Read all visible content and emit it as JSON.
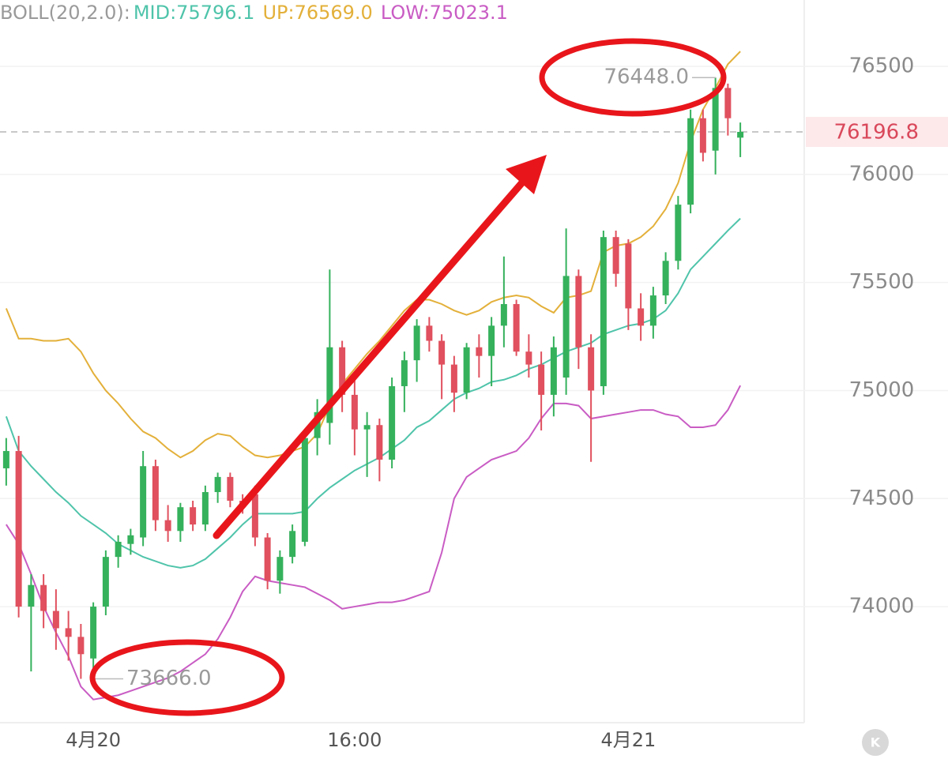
{
  "chart_data": {
    "type": "candlestick",
    "indicator": "BOLL(20,2.0):",
    "categories": [
      null,
      null,
      null,
      null,
      null,
      null,
      null,
      "4月20",
      null,
      null,
      null,
      null,
      null,
      null,
      null,
      null,
      null,
      null,
      null,
      null,
      null,
      null,
      null,
      null,
      null,
      null,
      null,
      null,
      "16:00",
      null,
      null,
      null,
      null,
      null,
      null,
      null,
      null,
      null,
      null,
      null,
      null,
      null,
      null,
      null,
      null,
      null,
      null,
      null,
      null,
      null,
      "4月21",
      null,
      null,
      null,
      null,
      null,
      null,
      null,
      null,
      null
    ],
    "ohlc": [
      [
        74640,
        74780,
        74560,
        74720
      ],
      [
        74720,
        74790,
        73950,
        74000
      ],
      [
        74000,
        74150,
        73700,
        74100
      ],
      [
        74100,
        74150,
        73900,
        73980
      ],
      [
        73980,
        74080,
        73800,
        73900
      ],
      [
        73900,
        73980,
        73750,
        73860
      ],
      [
        73860,
        73920,
        73666,
        73780
      ],
      [
        73760,
        74020,
        73700,
        74000
      ],
      [
        74000,
        74260,
        73960,
        74230
      ],
      [
        74230,
        74330,
        74180,
        74300
      ],
      [
        74290,
        74360,
        74240,
        74330
      ],
      [
        74320,
        74720,
        74280,
        74650
      ],
      [
        74650,
        74680,
        74350,
        74400
      ],
      [
        74400,
        74470,
        74300,
        74350
      ],
      [
        74350,
        74480,
        74300,
        74460
      ],
      [
        74460,
        74490,
        74350,
        74380
      ],
      [
        74380,
        74560,
        74350,
        74530
      ],
      [
        74530,
        74620,
        74480,
        74600
      ],
      [
        74600,
        74620,
        74460,
        74490
      ],
      [
        74490,
        74520,
        74430,
        74460
      ],
      [
        74520,
        74560,
        74280,
        74320
      ],
      [
        74320,
        74340,
        74080,
        74120
      ],
      [
        74120,
        74260,
        74060,
        74230
      ],
      [
        74230,
        74380,
        74200,
        74350
      ],
      [
        74300,
        74800,
        74280,
        74780
      ],
      [
        74780,
        74960,
        74700,
        74900
      ],
      [
        74850,
        75560,
        74750,
        75200
      ],
      [
        75200,
        75230,
        74900,
        74980
      ],
      [
        74980,
        75050,
        74700,
        74820
      ],
      [
        74820,
        74900,
        74600,
        74840
      ],
      [
        74840,
        74870,
        74580,
        74680
      ],
      [
        74680,
        75060,
        74640,
        75020
      ],
      [
        75020,
        75180,
        74900,
        75140
      ],
      [
        75140,
        75330,
        75040,
        75300
      ],
      [
        75300,
        75340,
        75180,
        75230
      ],
      [
        75230,
        75260,
        74960,
        75120
      ],
      [
        75120,
        75160,
        74900,
        74990
      ],
      [
        74990,
        75220,
        74960,
        75200
      ],
      [
        75200,
        75260,
        75060,
        75160
      ],
      [
        75160,
        75340,
        75020,
        75300
      ],
      [
        75300,
        75620,
        75200,
        75400
      ],
      [
        75400,
        75420,
        75160,
        75180
      ],
      [
        75180,
        75260,
        75060,
        75120
      ],
      [
        75120,
        75180,
        74815,
        74980
      ],
      [
        74980,
        75250,
        74880,
        75200
      ],
      [
        75060,
        75750,
        74980,
        75530
      ],
      [
        75530,
        75560,
        75100,
        75200
      ],
      [
        75200,
        75260,
        74670,
        75000
      ],
      [
        75020,
        75740,
        74980,
        75710
      ],
      [
        75710,
        75740,
        75480,
        75540
      ],
      [
        75680,
        75700,
        75280,
        75380
      ],
      [
        75380,
        75450,
        75230,
        75300
      ],
      [
        75300,
        75480,
        75240,
        75440
      ],
      [
        75440,
        75640,
        75400,
        75600
      ],
      [
        75600,
        75900,
        75560,
        75860
      ],
      [
        75860,
        76300,
        75820,
        76260
      ],
      [
        76260,
        76300,
        76060,
        76100
      ],
      [
        76110,
        76448,
        76000,
        76400
      ],
      [
        76400,
        76420,
        76180,
        76260
      ],
      [
        76170,
        76240,
        76080,
        76196.8
      ]
    ],
    "up_color": "#35b15c",
    "down_color": "#e0505e",
    "series": [
      {
        "name": "MID:75796.1",
        "color": "#4fc4aa",
        "values": [
          74880,
          74720,
          74650,
          74590,
          74530,
          74480,
          74420,
          74380,
          74340,
          74290,
          74260,
          74230,
          74210,
          74190,
          74180,
          74190,
          74220,
          74270,
          74320,
          74380,
          74430,
          74430,
          74430,
          74430,
          74440,
          74500,
          74550,
          74590,
          74630,
          74660,
          74690,
          74730,
          74770,
          74830,
          74860,
          74910,
          74960,
          74990,
          75010,
          75040,
          75050,
          75070,
          75100,
          75120,
          75150,
          75180,
          75200,
          75220,
          75260,
          75280,
          75300,
          75310,
          75330,
          75370,
          75450,
          75560,
          75620,
          75680,
          75740,
          75796.1
        ]
      },
      {
        "name": "UP:76569.0",
        "color": "#e3b03a",
        "values": [
          75380,
          75240,
          75240,
          75230,
          75230,
          75240,
          75180,
          75080,
          75000,
          74940,
          74870,
          74810,
          74780,
          74730,
          74690,
          74720,
          74770,
          74800,
          74790,
          74740,
          74700,
          74690,
          74700,
          74720,
          74740,
          74800,
          74930,
          75030,
          75100,
          75170,
          75230,
          75300,
          75370,
          75420,
          75420,
          75400,
          75370,
          75350,
          75370,
          75410,
          75430,
          75440,
          75430,
          75390,
          75360,
          75430,
          75440,
          75460,
          75640,
          75670,
          75680,
          75710,
          75760,
          75840,
          75960,
          76150,
          76300,
          76400,
          76510,
          76569
        ]
      },
      {
        "name": "LOW:75023.1",
        "color": "#c95cc4",
        "values": [
          74380,
          74290,
          74150,
          74000,
          73880,
          73770,
          73630,
          73570,
          73580,
          73590,
          73610,
          73630,
          73650,
          73670,
          73700,
          73740,
          73780,
          73850,
          73950,
          74070,
          74140,
          74120,
          74110,
          74100,
          74090,
          74060,
          74030,
          73990,
          74000,
          74010,
          74020,
          74020,
          74030,
          74050,
          74070,
          74250,
          74500,
          74600,
          74640,
          74680,
          74700,
          74720,
          74780,
          74870,
          74940,
          74940,
          74930,
          74870,
          74880,
          74890,
          74900,
          74910,
          74910,
          74890,
          74880,
          74830,
          74830,
          74840,
          74910,
          75023.1
        ]
      }
    ],
    "ylim": [
      73463,
      76807
    ],
    "yticks": [
      74000,
      74500,
      75000,
      75500,
      76000,
      76500
    ],
    "grid": true,
    "high_marker": {
      "value": 76448,
      "label": "76448.0"
    },
    "low_marker": {
      "value": 73666,
      "label": "73666.0"
    },
    "last_price": 76196.8
  }
}
